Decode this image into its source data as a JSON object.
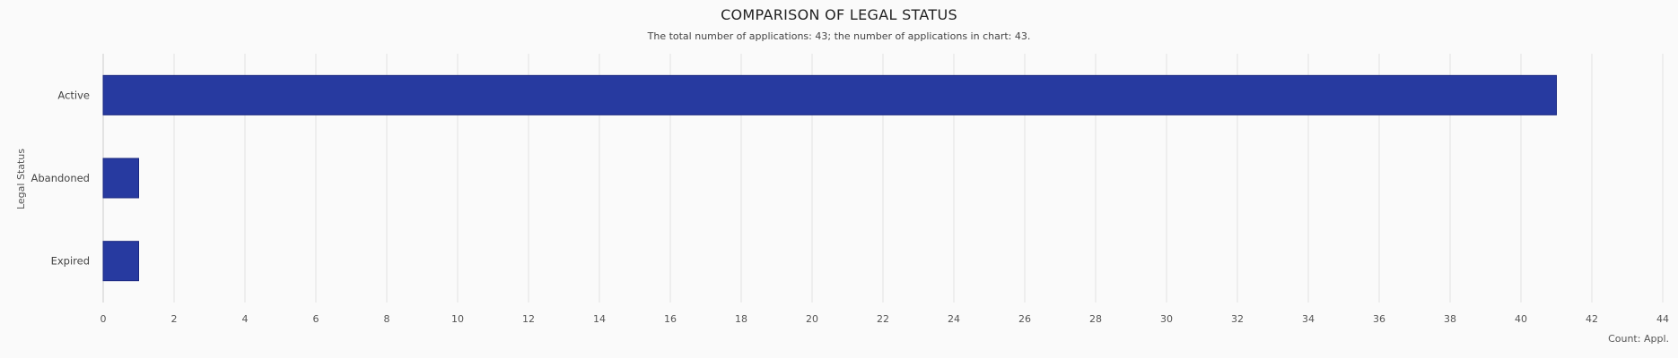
{
  "chart_data": {
    "type": "bar",
    "orientation": "horizontal",
    "title": "COMPARISON OF LEGAL STATUS",
    "subtitle": "The total number of applications: 43; the number of applications in chart: 43.",
    "categories": [
      "Active",
      "Abandoned",
      "Expired"
    ],
    "values": [
      41,
      1,
      1
    ],
    "xlabel": "Count: Appl.",
    "ylabel": "Legal Status",
    "xlim": [
      0,
      44
    ],
    "xticks": [
      0,
      2,
      4,
      6,
      8,
      10,
      12,
      14,
      16,
      18,
      20,
      22,
      24,
      26,
      28,
      30,
      32,
      34,
      36,
      38,
      40,
      42,
      44
    ],
    "grid": true,
    "legend": "none",
    "colors": {
      "bar": "#273aa0",
      "bar_border": "#1a2880",
      "grid": "#e3e3e3",
      "axis": "#cccccc"
    }
  }
}
